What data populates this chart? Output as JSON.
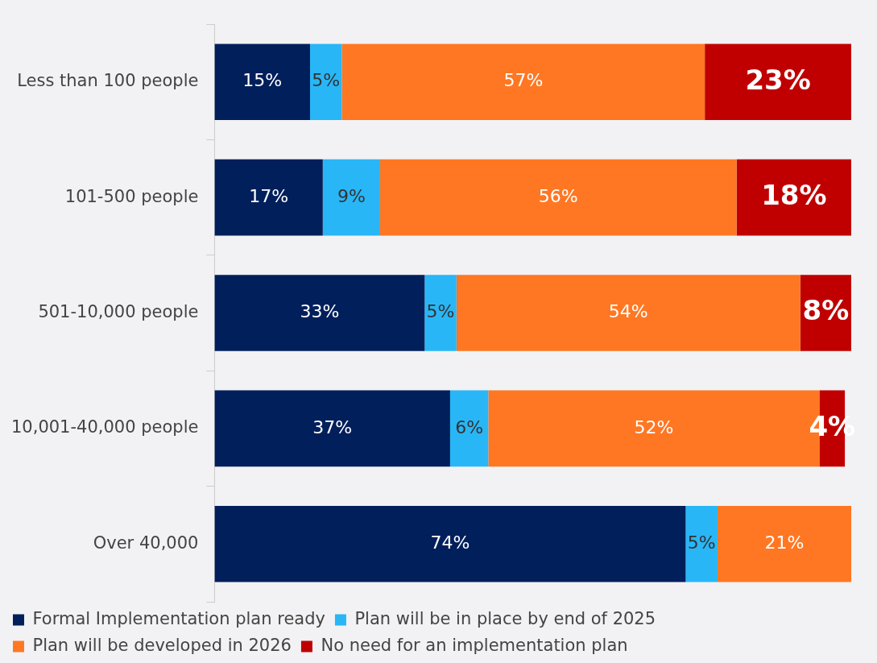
{
  "chart_data": {
    "type": "bar",
    "orientation": "horizontal",
    "stacked": true,
    "categories": [
      "Less than 100 people",
      "101-500 people",
      "501-10,000 people",
      "10,001-40,000 people",
      "Over 40,000"
    ],
    "series": [
      {
        "name": "Formal Implementation plan ready",
        "color": "#001f5b",
        "values": [
          15,
          17,
          33,
          37,
          74
        ],
        "value_labels": [
          "15%",
          "17%",
          "33%",
          "37%",
          "74%"
        ]
      },
      {
        "name": "Plan will be in place by end of 2025",
        "color": "#29b6f6",
        "values": [
          5,
          9,
          5,
          6,
          5
        ],
        "value_labels": [
          "5%",
          "9%",
          "5%",
          "6%",
          "5%"
        ]
      },
      {
        "name": "Plan will be developed in 2026",
        "color": "#ff7722",
        "values": [
          57,
          56,
          54,
          52,
          21
        ],
        "value_labels": [
          "57%",
          "56%",
          "54%",
          "52%",
          "21%"
        ]
      },
      {
        "name": "No need for an implementation plan",
        "color": "#c00000",
        "values": [
          23,
          18,
          8,
          4,
          null
        ],
        "value_labels": [
          "23%",
          "18%",
          "8%",
          "4%",
          null
        ]
      }
    ],
    "tick_labels": "y",
    "legend": "bottom"
  }
}
